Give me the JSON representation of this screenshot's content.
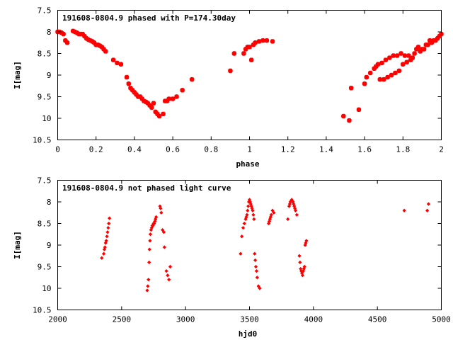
{
  "chart_data": [
    {
      "type": "scatter",
      "title": "191608-0804.9 phased with P=174.30day",
      "xlabel": "phase",
      "ylabel": "I[mag]",
      "xlim": [
        0,
        2
      ],
      "ylim": [
        7.5,
        10.5
      ],
      "y_inverted": true,
      "xticks": [
        0,
        0.2,
        0.4,
        0.6,
        0.8,
        1,
        1.2,
        1.4,
        1.6,
        1.8,
        2
      ],
      "xtick_labels": [
        "0",
        "0.2",
        "0.4",
        "0.6",
        "0.8",
        "1",
        "1.2",
        "1.4",
        "1.6",
        "1.8",
        "2"
      ],
      "yticks": [
        7.5,
        8,
        8.5,
        9,
        9.5,
        10,
        10.5
      ],
      "ytick_labels": [
        "7.5",
        "8",
        "8.5",
        "9",
        "9.5",
        "10",
        "10.5"
      ],
      "grid": false,
      "marker_color": "#ff0000",
      "series": [
        {
          "x": [
            0.0,
            0.01,
            0.02,
            0.03,
            0.04,
            0.05,
            0.08,
            0.09,
            0.1,
            0.11,
            0.12,
            0.13,
            0.14,
            0.15,
            0.16,
            0.17,
            0.18,
            0.19,
            0.2,
            0.21,
            0.22,
            0.23,
            0.24,
            0.25,
            0.29,
            0.31,
            0.33,
            0.36,
            0.37,
            0.38,
            0.39,
            0.4,
            0.41,
            0.42,
            0.43,
            0.44,
            0.45,
            0.46,
            0.47,
            0.48,
            0.49,
            0.5,
            0.51,
            0.52,
            0.53,
            0.55,
            0.56,
            0.57,
            0.58,
            0.6,
            0.62,
            0.65,
            0.7,
            0.9,
            0.92,
            0.97,
            0.98,
            0.99,
            1.0,
            1.01,
            1.02,
            1.03,
            1.05,
            1.07,
            1.09,
            1.12,
            1.49,
            1.52,
            1.53,
            1.57,
            1.6,
            1.61,
            1.63,
            1.65,
            1.66,
            1.67,
            1.68,
            1.69,
            1.7,
            1.71,
            1.72,
            1.73,
            1.74,
            1.75,
            1.76,
            1.77,
            1.78,
            1.79,
            1.8,
            1.81,
            1.82,
            1.83,
            1.84,
            1.85,
            1.86,
            1.87,
            1.88,
            1.89,
            1.9,
            1.91,
            1.92,
            1.93,
            1.94,
            1.95,
            1.96,
            1.97,
            1.98,
            1.99,
            2.0
          ],
          "y": [
            8.0,
            8.0,
            8.02,
            8.05,
            8.2,
            8.25,
            7.98,
            8.0,
            8.02,
            8.05,
            8.05,
            8.05,
            8.1,
            8.15,
            8.18,
            8.2,
            8.22,
            8.25,
            8.3,
            8.3,
            8.32,
            8.35,
            8.4,
            8.45,
            8.65,
            8.72,
            8.75,
            9.05,
            9.2,
            9.3,
            9.35,
            9.4,
            9.45,
            9.5,
            9.5,
            9.55,
            9.6,
            9.62,
            9.65,
            9.7,
            9.75,
            9.65,
            9.85,
            9.9,
            9.95,
            9.9,
            9.6,
            9.6,
            9.55,
            9.55,
            9.5,
            9.35,
            9.1,
            8.9,
            8.5,
            8.5,
            8.4,
            8.35,
            8.35,
            8.65,
            8.3,
            8.25,
            8.22,
            8.2,
            8.2,
            8.22,
            9.95,
            10.05,
            9.3,
            9.8,
            9.2,
            9.05,
            8.95,
            8.85,
            8.8,
            8.75,
            9.1,
            8.72,
            9.1,
            8.65,
            9.05,
            8.6,
            9.0,
            8.55,
            8.95,
            8.55,
            8.9,
            8.5,
            8.75,
            8.55,
            8.7,
            8.55,
            8.65,
            8.6,
            8.5,
            8.4,
            8.35,
            8.45,
            8.4,
            8.4,
            8.3,
            8.3,
            8.2,
            8.25,
            8.2,
            8.2,
            8.15,
            8.1,
            8.05
          ]
        }
      ]
    },
    {
      "type": "scatter",
      "title": "191608-0804.9 not phased light curve",
      "xlabel": "hjd0",
      "ylabel": "I[mag]",
      "xlim": [
        2000,
        5000
      ],
      "ylim": [
        7.5,
        10.5
      ],
      "y_inverted": true,
      "xticks": [
        2000,
        2500,
        3000,
        3500,
        4000,
        4500,
        5000
      ],
      "xtick_labels": [
        "2000",
        "2500",
        "3000",
        "3500",
        "4000",
        "4500",
        "5000"
      ],
      "yticks": [
        7.5,
        8,
        8.5,
        9,
        9.5,
        10,
        10.5
      ],
      "ytick_labels": [
        "7.5",
        "8",
        "8.5",
        "9",
        "9.5",
        "10",
        "10.5"
      ],
      "grid": false,
      "marker_color": "#ff0000",
      "series": [
        {
          "x": [
            2345,
            2360,
            2365,
            2370,
            2375,
            2380,
            2385,
            2390,
            2395,
            2400,
            2405,
            2700,
            2705,
            2710,
            2715,
            2718,
            2722,
            2725,
            2730,
            2735,
            2740,
            2745,
            2750,
            2755,
            2760,
            2765,
            2770,
            2800,
            2805,
            2810,
            2820,
            2830,
            2835,
            2850,
            2860,
            2870,
            2880,
            3430,
            3440,
            3450,
            3460,
            3470,
            3475,
            3480,
            3485,
            3490,
            3495,
            3500,
            3505,
            3510,
            3515,
            3520,
            3525,
            3530,
            3535,
            3540,
            3545,
            3550,
            3555,
            3560,
            3570,
            3580,
            3650,
            3655,
            3660,
            3665,
            3670,
            3680,
            3690,
            3800,
            3810,
            3815,
            3820,
            3825,
            3830,
            3835,
            3840,
            3845,
            3850,
            3855,
            3860,
            3870,
            3890,
            3895,
            3900,
            3905,
            3910,
            3915,
            3920,
            3925,
            3930,
            3935,
            3940,
            3945,
            4710,
            4890,
            4900
          ],
          "y": [
            9.3,
            9.2,
            9.1,
            9.05,
            8.95,
            8.9,
            8.8,
            8.7,
            8.6,
            8.5,
            8.38,
            10.05,
            9.95,
            9.8,
            9.4,
            9.1,
            8.9,
            8.75,
            8.65,
            8.6,
            8.55,
            8.55,
            8.5,
            8.5,
            8.45,
            8.4,
            8.35,
            8.1,
            8.15,
            8.25,
            8.65,
            8.7,
            9.05,
            9.6,
            9.7,
            9.8,
            9.5,
            9.2,
            8.8,
            8.6,
            8.5,
            8.4,
            8.35,
            8.3,
            8.2,
            8.1,
            8.0,
            7.95,
            8.0,
            8.05,
            8.1,
            8.15,
            8.2,
            8.3,
            8.4,
            9.2,
            9.35,
            9.5,
            9.6,
            9.75,
            9.95,
            10.0,
            8.5,
            8.45,
            8.4,
            8.35,
            8.3,
            8.2,
            8.25,
            8.4,
            8.1,
            8.05,
            8.0,
            7.98,
            7.95,
            7.98,
            8.0,
            8.05,
            8.1,
            8.15,
            8.2,
            8.3,
            9.25,
            9.4,
            9.55,
            9.6,
            9.65,
            9.7,
            9.6,
            9.55,
            9.5,
            9.0,
            8.95,
            8.9,
            8.2,
            8.2,
            8.05
          ]
        }
      ]
    }
  ]
}
